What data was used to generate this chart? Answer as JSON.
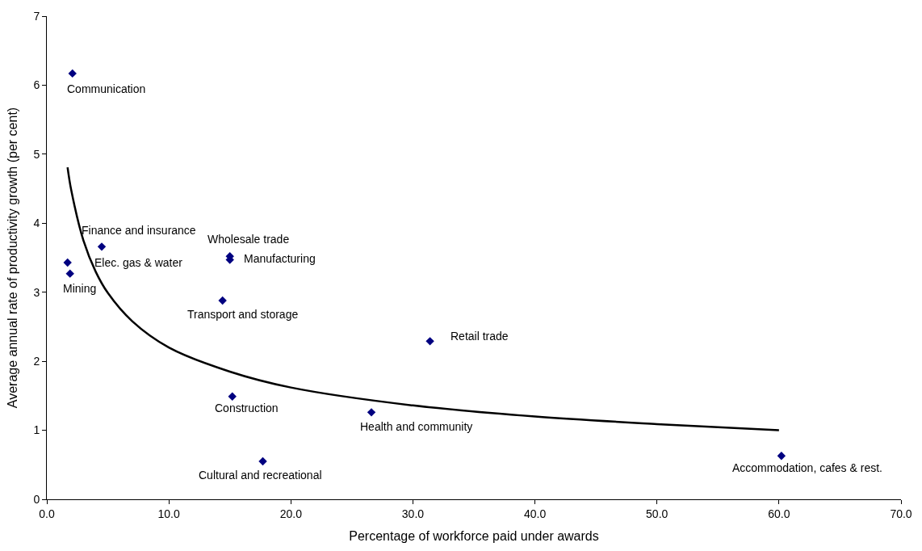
{
  "chart_data": {
    "type": "scatter",
    "xlabel": "Percentage of workforce paid under awards",
    "ylabel": "Average annual rate of productivity growth (per cent)",
    "xlim": [
      0,
      70
    ],
    "ylim": [
      0,
      7
    ],
    "xticks": [
      {
        "value": 0,
        "label": "0.0"
      },
      {
        "value": 10,
        "label": "10.0"
      },
      {
        "value": 20,
        "label": "20.0"
      },
      {
        "value": 30,
        "label": "30.0"
      },
      {
        "value": 40,
        "label": "40.0"
      },
      {
        "value": 50,
        "label": "50.0"
      },
      {
        "value": 60,
        "label": "60.0"
      },
      {
        "value": 70,
        "label": "70.0"
      }
    ],
    "yticks": [
      0,
      1,
      2,
      3,
      4,
      5,
      6,
      7
    ],
    "legend": false,
    "marker": "diamond",
    "series": [
      {
        "color": "#000080",
        "x": [
          2.1,
          1.7,
          1.9,
          4.5,
          15.0,
          15.0,
          14.4,
          31.4,
          15.2,
          26.6,
          17.7,
          60.2
        ],
        "values": [
          6.17,
          3.43,
          3.27,
          3.66,
          3.52,
          3.47,
          2.88,
          2.29,
          1.49,
          1.26,
          0.55,
          0.63
        ]
      },
      {
        "type": "line",
        "color": "#000000",
        "marker": "none",
        "line_style": "solid",
        "x": [
          1.7,
          2,
          3,
          4,
          5,
          7,
          10,
          15,
          20,
          30,
          40,
          50,
          60
        ],
        "values": [
          4.81,
          4.48,
          3.75,
          3.3,
          2.99,
          2.58,
          2.2,
          1.85,
          1.62,
          1.36,
          1.2,
          1.09,
          1.0
        ]
      }
    ],
    "annotations": [
      {
        "text": "Communication",
        "x": 2.1,
        "y": 6.17
      },
      {
        "text": "Elec. gas & water",
        "x": 1.7,
        "y": 3.43
      },
      {
        "text": "Mining",
        "x": 1.9,
        "y": 3.27
      },
      {
        "text": "Finance and insurance",
        "x": 4.5,
        "y": 3.66
      },
      {
        "text": "Wholesale trade",
        "x": 15.0,
        "y": 3.52
      },
      {
        "text": "Manufacturing",
        "x": 15.0,
        "y": 3.47
      },
      {
        "text": "Transport and storage",
        "x": 14.4,
        "y": 2.88
      },
      {
        "text": "Retail trade",
        "x": 31.4,
        "y": 2.29
      },
      {
        "text": "Construction",
        "x": 15.2,
        "y": 1.49
      },
      {
        "text": "Health and community",
        "x": 26.6,
        "y": 1.26
      },
      {
        "text": "Cultural and recreational",
        "x": 17.7,
        "y": 0.55
      },
      {
        "text": "Accommodation, cafes & rest.",
        "x": 60.2,
        "y": 0.63
      }
    ]
  }
}
